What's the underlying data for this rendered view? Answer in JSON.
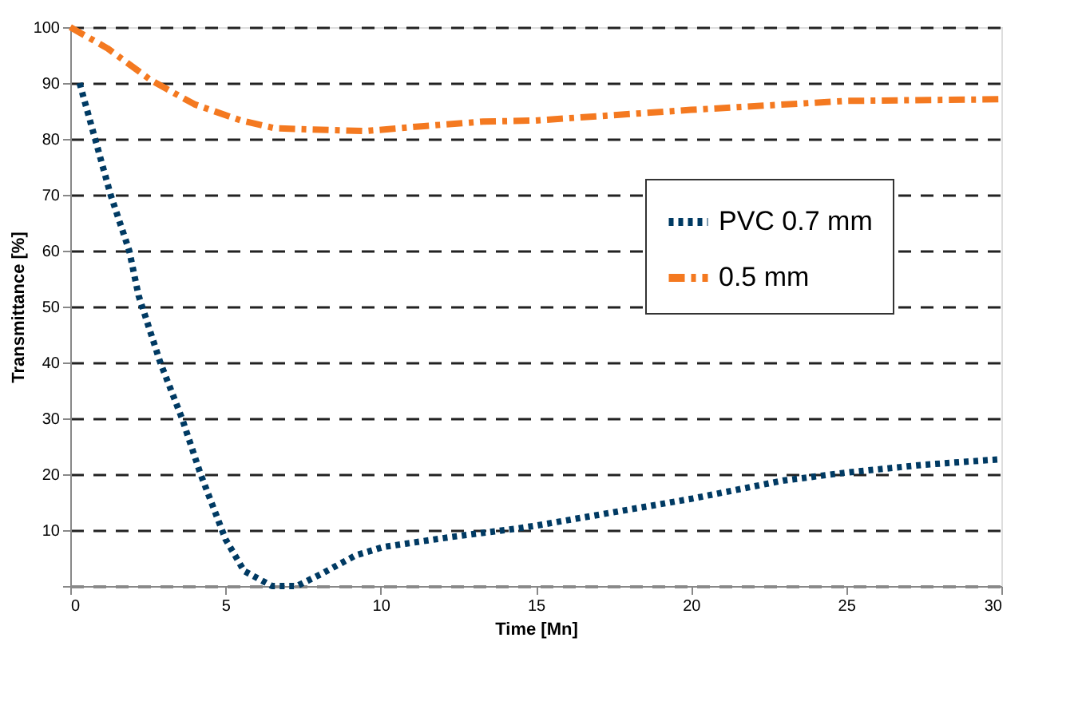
{
  "chart_data": {
    "type": "line",
    "xlabel": "Time [Mn]",
    "ylabel": "Transmittance [%]",
    "xlim": [
      0,
      30
    ],
    "xticks": [
      0,
      5,
      10,
      15,
      20,
      25,
      30
    ],
    "ylim": [
      0,
      100
    ],
    "yticks": [
      {
        "value": 0,
        "label": null
      },
      10,
      20,
      30,
      40,
      50,
      60,
      70,
      80,
      90,
      100
    ],
    "grid": "y",
    "legend": "top right",
    "series": [
      {
        "name": "PVC 0.7 mm",
        "color": "#003a63",
        "line_style": "dotted",
        "x": [
          0.3,
          0.8,
          1.3,
          1.9,
          2.2,
          2.9,
          3.6,
          4.2,
          5.0,
          5.6,
          6.5,
          7.3,
          8.1,
          9.2,
          10.1,
          12.3,
          14.4,
          15,
          20,
          23,
          25,
          27.5,
          30
        ],
        "values": [
          90,
          80,
          70,
          60,
          52,
          40,
          30,
          20,
          8.4,
          2.7,
          0,
          0,
          2.2,
          5.5,
          7,
          8.8,
          10.3,
          10.8,
          15.6,
          18.9,
          20.3,
          21.7,
          22.7
        ]
      },
      {
        "name": "0.5 mm",
        "color": "#f47920",
        "line_style": "dashed",
        "x": [
          0,
          1.2,
          2.6,
          4,
          5.5,
          6.6,
          9.5,
          11.4,
          13.3,
          15,
          20,
          25,
          30
        ],
        "values": [
          100,
          96.2,
          90.5,
          86.2,
          83.3,
          81.9,
          81.4,
          82.3,
          83.1,
          83.3,
          85.2,
          86.8,
          87.1
        ]
      }
    ]
  }
}
